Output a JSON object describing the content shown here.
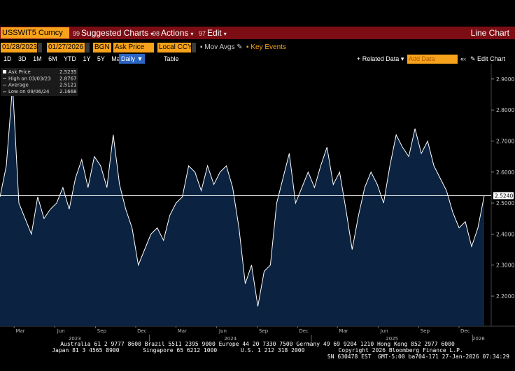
{
  "toolbar": {
    "security": "USSWIT5 Curncy",
    "menus": [
      {
        "code": "99",
        "label": "Suggested Charts"
      },
      {
        "code": "98",
        "label": "Actions"
      },
      {
        "code": "97",
        "label": "Edit"
      }
    ],
    "view": "Line Chart",
    "fields": [
      "BGN",
      "Local CCY"
    ],
    "options": [
      "Mov Avgs",
      "Key Events"
    ],
    "periods": [
      "1D",
      "3D",
      "1M",
      "6M",
      "YTD",
      "1Y",
      "5Y",
      "Max"
    ],
    "frequency": "Daily",
    "table": "Table",
    "related": "Related Data",
    "add_data": "Add Data",
    "edit_chart": "Edit Chart"
  },
  "chart_data": {
    "type": "area",
    "xlim": [
      "01/28/2023",
      "01/27/2026"
    ],
    "xticks": [
      {
        "value": "2023-03",
        "label": "Mar"
      },
      {
        "value": "2023-06",
        "label": "Jun"
      },
      {
        "value": "2023-09",
        "label": "Sep"
      },
      {
        "value": "2023-12",
        "label": "Dec"
      },
      {
        "value": "2024-03",
        "label": "Mar"
      },
      {
        "value": "2024-06",
        "label": "Jun"
      },
      {
        "value": "2024-09",
        "label": "Sep"
      },
      {
        "value": "2024-12",
        "label": "Dec"
      },
      {
        "value": "2025-03",
        "label": "Mar"
      },
      {
        "value": "2025-06",
        "label": "Jun"
      },
      {
        "value": "2025-09",
        "label": "Sep"
      },
      {
        "value": "2025-12",
        "label": "Dec"
      }
    ],
    "years": [
      "2023",
      "2024",
      "2025",
      "2026"
    ],
    "ylim": [
      2.103,
      2.947
    ],
    "yticks": [
      {
        "value": 2.2,
        "label": "2.2000"
      },
      {
        "value": 2.3,
        "label": "2.3000"
      },
      {
        "value": 2.4,
        "label": "2.4000"
      },
      {
        "value": 2.5,
        "label": "2.5000"
      },
      {
        "value": 2.6,
        "label": "2.6000"
      },
      {
        "value": 2.7,
        "label": "2.7000"
      },
      {
        "value": 2.8,
        "label": "2.8000"
      },
      {
        "value": 2.9,
        "label": "2.9000"
      }
    ],
    "last_line": {
      "value": 2.524,
      "label": "2.5240"
    },
    "series": [
      {
        "name": "Ask Price",
        "color": "#ffffff",
        "fill": "#0b2340",
        "values": [
          2.52,
          2.62,
          2.88,
          2.5,
          2.45,
          2.4,
          2.52,
          2.45,
          2.48,
          2.5,
          2.55,
          2.48,
          2.58,
          2.64,
          2.55,
          2.65,
          2.62,
          2.55,
          2.72,
          2.56,
          2.48,
          2.42,
          2.3,
          2.35,
          2.4,
          2.42,
          2.38,
          2.46,
          2.5,
          2.52,
          2.62,
          2.6,
          2.54,
          2.62,
          2.56,
          2.6,
          2.62,
          2.55,
          2.42,
          2.24,
          2.3,
          2.1668,
          2.28,
          2.3,
          2.5,
          2.58,
          2.66,
          2.5,
          2.55,
          2.6,
          2.55,
          2.62,
          2.68,
          2.56,
          2.6,
          2.48,
          2.35,
          2.46,
          2.55,
          2.6,
          2.56,
          2.5,
          2.62,
          2.72,
          2.68,
          2.65,
          2.74,
          2.66,
          2.7,
          2.62,
          2.58,
          2.54,
          2.47,
          2.42,
          2.44,
          2.36,
          2.42,
          2.5235
        ]
      }
    ],
    "legend": [
      {
        "label": "Ask Price",
        "value": 2.5235
      },
      {
        "label": "High on 03/03/23",
        "value": 2.8767
      },
      {
        "label": "Average",
        "value": 2.5121
      },
      {
        "label": "Low on 09/06/24",
        "value": 2.1668
      }
    ]
  },
  "footer": [
    "Australia 61 2 9777 8600 Brazil 5511 2395 9000 Europe 44 20 7330 7500 Germany 49 69 9204 1210 Hong Kong 852 2977 6000",
    "Japan 81 3 4565 8900       Singapore 65 6212 1000       U.S. 1 212 318 2000          Copyright 2026 Bloomberg Finance L.P.",
    "SN 630478 EST  GMT-5:00 ba704-171 27-Jan-2026 07:34:29"
  ]
}
